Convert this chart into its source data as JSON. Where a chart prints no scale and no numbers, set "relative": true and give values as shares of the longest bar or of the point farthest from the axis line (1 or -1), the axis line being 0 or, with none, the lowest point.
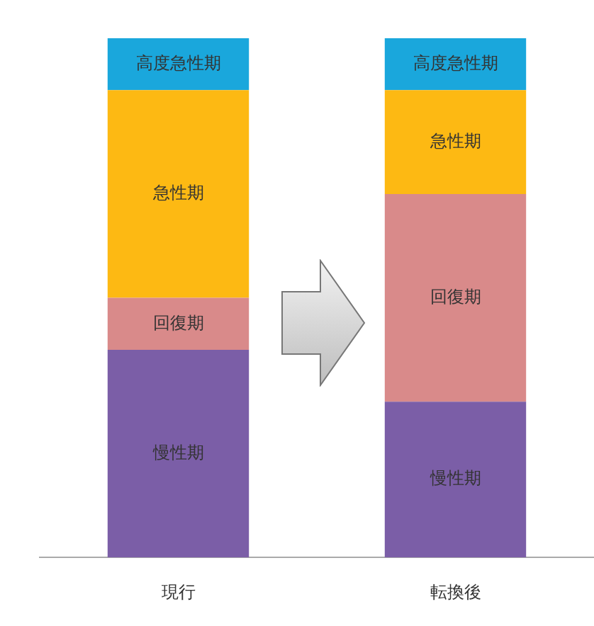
{
  "chart_data": {
    "type": "bar",
    "stacked": true,
    "relative": true,
    "legend": false,
    "categories": [
      "現行",
      "転換後"
    ],
    "series": [
      {
        "name": "慢性期",
        "color": "#7b5ea7",
        "values": [
          0.4,
          0.3
        ]
      },
      {
        "name": "回復期",
        "color": "#d98a8a",
        "values": [
          0.1,
          0.4
        ]
      },
      {
        "name": "急性期",
        "color": "#fdb913",
        "values": [
          0.4,
          0.2
        ]
      },
      {
        "name": "高度急性期",
        "color": "#1aa7dc",
        "values": [
          0.1,
          0.1
        ]
      }
    ]
  }
}
